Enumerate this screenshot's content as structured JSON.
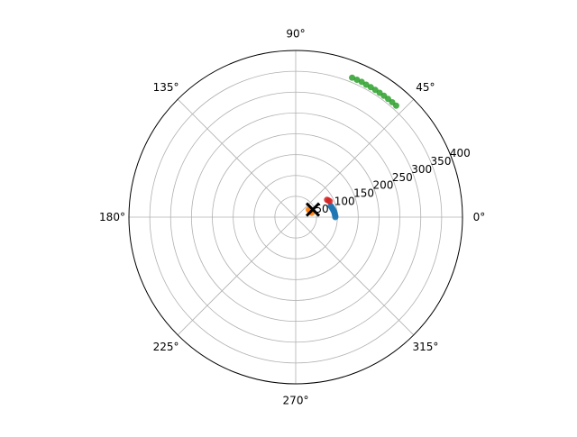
{
  "chart_data": {
    "type": "scatter",
    "projection": "polar",
    "title": "",
    "angle_ticks": [
      {
        "deg": 0,
        "label": "0°"
      },
      {
        "deg": 45,
        "label": "45°"
      },
      {
        "deg": 90,
        "label": "90°"
      },
      {
        "deg": 135,
        "label": "135°"
      },
      {
        "deg": 180,
        "label": "180°"
      },
      {
        "deg": 225,
        "label": "225°"
      },
      {
        "deg": 270,
        "label": "270°"
      },
      {
        "deg": 315,
        "label": "315°"
      }
    ],
    "radial_ticks": [
      {
        "r": 50,
        "label": "50"
      },
      {
        "r": 100,
        "label": "100"
      },
      {
        "r": 150,
        "label": "150"
      },
      {
        "r": 200,
        "label": "200"
      },
      {
        "r": 250,
        "label": "250"
      },
      {
        "r": 300,
        "label": "300"
      },
      {
        "r": 350,
        "label": "350"
      },
      {
        "r": 400,
        "label": "400"
      }
    ],
    "rlim": [
      0,
      400
    ],
    "rlabel_position_deg": 22.5,
    "grid": true,
    "series": [
      {
        "color": "#1f77b4",
        "marker": "circle",
        "points": [
          {
            "theta": 0,
            "r": 95
          },
          {
            "theta": 2,
            "r": 95
          },
          {
            "theta": 4,
            "r": 94
          },
          {
            "theta": 6,
            "r": 94
          },
          {
            "theta": 8,
            "r": 93
          },
          {
            "theta": 10,
            "r": 92
          },
          {
            "theta": 12,
            "r": 91
          },
          {
            "theta": 14,
            "r": 90
          },
          {
            "theta": 16,
            "r": 89
          },
          {
            "theta": 18,
            "r": 88
          }
        ]
      },
      {
        "color": "#ff7f0e",
        "marker": "circle",
        "points": [
          {
            "theta": 15,
            "r": 40
          },
          {
            "theta": 20,
            "r": 38
          },
          {
            "theta": 25,
            "r": 37
          },
          {
            "theta": 30,
            "r": 36
          }
        ]
      },
      {
        "color": "#2ca02c",
        "marker": "circle",
        "points": [
          {
            "theta": 48,
            "r": 360
          },
          {
            "theta": 50,
            "r": 360
          },
          {
            "theta": 52,
            "r": 360
          },
          {
            "theta": 54,
            "r": 360
          },
          {
            "theta": 56,
            "r": 360
          },
          {
            "theta": 58,
            "r": 360
          },
          {
            "theta": 60,
            "r": 360
          },
          {
            "theta": 62,
            "r": 360
          },
          {
            "theta": 64,
            "r": 361
          },
          {
            "theta": 66,
            "r": 361
          },
          {
            "theta": 68,
            "r": 361
          }
        ]
      },
      {
        "color": "#d62728",
        "marker": "circle",
        "points": [
          {
            "theta": 25,
            "r": 90
          },
          {
            "theta": 27,
            "r": 88
          },
          {
            "theta": 29,
            "r": 86
          }
        ]
      },
      {
        "color": "#000000",
        "marker": "x",
        "points": [
          {
            "theta": 24,
            "r": 45
          }
        ]
      }
    ]
  }
}
